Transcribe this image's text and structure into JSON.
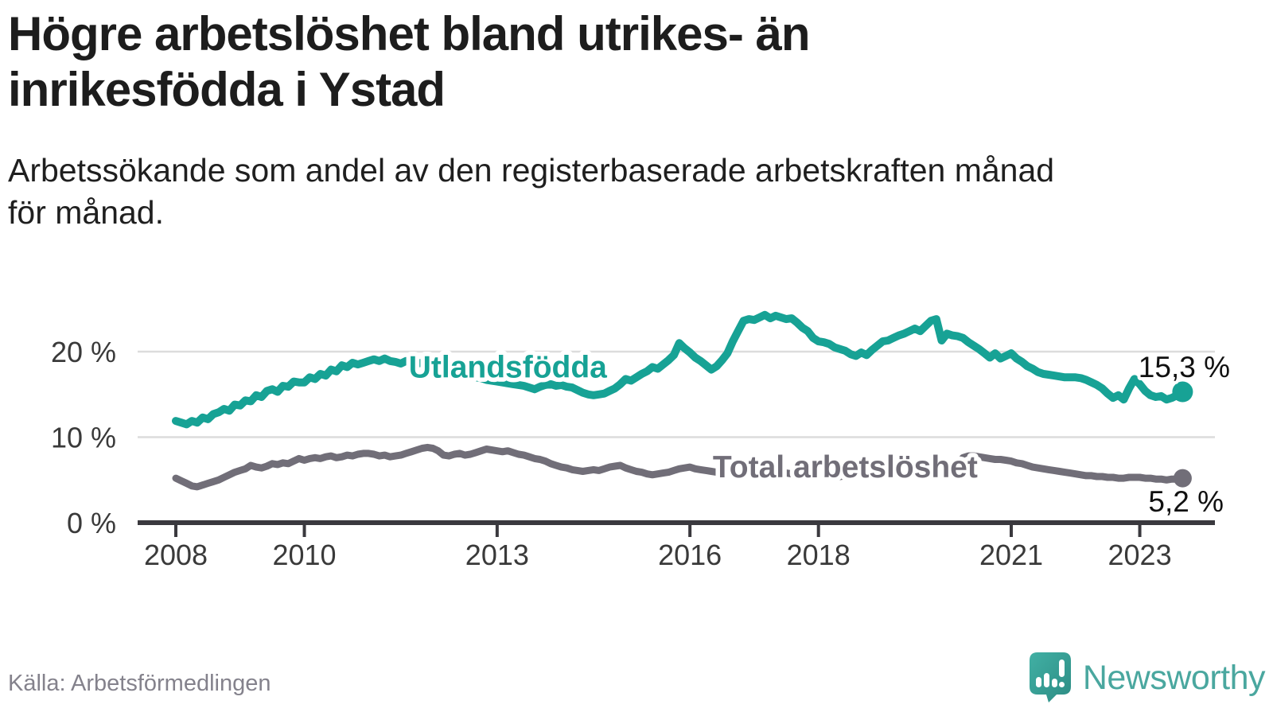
{
  "title_lines": [
    "Högre arbetslöshet bland utrikes- än",
    "inrikesfödda i Ystad"
  ],
  "subtitle_lines": [
    "Arbetssökande som andel av den registerbaserade arbetskraften månad",
    "för månad."
  ],
  "source": "Källa: Arbetsförmedlingen",
  "logo_text": "Newsworthy",
  "colors": {
    "accent_teal": "#17a295",
    "series_gray": "#716e78",
    "grid": "#dcdcdc",
    "axis": "#3a393e",
    "annotation_text": "#111111",
    "tick_text": "#3a3a3a",
    "source_text": "#84828c",
    "logo_teal": "#4aa79f"
  },
  "chart_data": {
    "type": "line",
    "title": "Högre arbetslöshet bland utrikes- än inrikesfödda i Ystad",
    "subtitle": "Arbetssökande som andel av den registerbaserade arbetskraften månad för månad.",
    "unit": "%",
    "grid": true,
    "x_start": "2008-01",
    "x_end": "2023-09",
    "x_interval": "monthly",
    "x_ticks": [
      2008,
      2010,
      2013,
      2016,
      2018,
      2021,
      2023
    ],
    "y_ticks": [
      {
        "v": 0,
        "label": "0 %"
      },
      {
        "v": 10,
        "label": "10 %"
      },
      {
        "v": 20,
        "label": "20 %"
      }
    ],
    "ylim": [
      0,
      26
    ],
    "series": [
      {
        "name": "Utlandsfödda",
        "color": "#17a295",
        "end_label": "15,3 %",
        "end_value": 15.3,
        "label_anchor": {
          "index": 62,
          "value": 18.3
        },
        "values": [
          11.9,
          11.7,
          11.5,
          11.9,
          11.7,
          12.3,
          12.1,
          12.7,
          12.9,
          13.3,
          13.1,
          13.8,
          13.7,
          14.3,
          14.2,
          14.9,
          14.7,
          15.4,
          15.6,
          15.3,
          16.0,
          15.9,
          16.5,
          16.4,
          16.4,
          17.0,
          16.8,
          17.4,
          17.2,
          17.9,
          17.7,
          18.4,
          18.2,
          18.7,
          18.5,
          18.7,
          18.9,
          19.1,
          18.9,
          19.2,
          18.9,
          18.8,
          18.6,
          18.9,
          18.8,
          18.6,
          18.7,
          18.5,
          18.4,
          18.2,
          18.0,
          17.8,
          17.6,
          17.4,
          17.2,
          17.1,
          17.0,
          16.9,
          16.7,
          16.6,
          16.5,
          16.4,
          16.3,
          16.2,
          16.1,
          16.0,
          15.8,
          15.6,
          15.9,
          16.1,
          16.2,
          16.0,
          16.1,
          15.9,
          15.8,
          15.5,
          15.2,
          15.0,
          14.9,
          15.0,
          15.1,
          15.4,
          15.7,
          16.2,
          16.8,
          16.6,
          17.0,
          17.4,
          17.7,
          18.2,
          18.0,
          18.5,
          19.0,
          19.6,
          21.0,
          20.4,
          19.9,
          19.3,
          18.9,
          18.4,
          17.9,
          18.3,
          19.0,
          19.8,
          21.2,
          22.4,
          23.6,
          23.8,
          23.7,
          24.0,
          24.3,
          23.9,
          24.2,
          24.0,
          23.8,
          23.9,
          23.4,
          22.8,
          22.4,
          21.6,
          21.2,
          21.1,
          20.9,
          20.5,
          20.3,
          20.1,
          19.7,
          19.5,
          19.9,
          19.6,
          20.2,
          20.7,
          21.2,
          21.3,
          21.6,
          21.9,
          22.1,
          22.4,
          22.7,
          22.4,
          23.0,
          23.6,
          23.8,
          21.3,
          22.1,
          21.9,
          21.8,
          21.6,
          21.1,
          20.7,
          20.3,
          19.8,
          19.3,
          19.8,
          19.2,
          19.5,
          19.8,
          19.2,
          18.8,
          18.3,
          18.0,
          17.6,
          17.4,
          17.3,
          17.2,
          17.1,
          17.0,
          17.0,
          17.0,
          16.9,
          16.7,
          16.4,
          16.1,
          15.7,
          15.1,
          14.6,
          14.9,
          14.4,
          15.7,
          16.8,
          16.2,
          15.4,
          14.9,
          14.7,
          14.8,
          14.4,
          14.6,
          14.9,
          15.3
        ]
      },
      {
        "name": "Total arbetslöshet",
        "color": "#716e78",
        "end_label": "5,2 %",
        "end_value": 5.2,
        "label_anchor": {
          "index": 125,
          "value": 6.6
        },
        "values": [
          5.2,
          4.9,
          4.6,
          4.3,
          4.2,
          4.4,
          4.6,
          4.8,
          5.0,
          5.3,
          5.6,
          5.9,
          6.1,
          6.3,
          6.7,
          6.5,
          6.4,
          6.6,
          6.9,
          6.8,
          7.0,
          6.9,
          7.2,
          7.5,
          7.3,
          7.5,
          7.6,
          7.5,
          7.7,
          7.8,
          7.6,
          7.7,
          7.9,
          7.8,
          8.0,
          8.1,
          8.1,
          8.0,
          7.8,
          7.9,
          7.7,
          7.8,
          7.9,
          8.1,
          8.3,
          8.5,
          8.7,
          8.8,
          8.7,
          8.4,
          7.9,
          7.8,
          8.0,
          8.1,
          7.9,
          8.0,
          8.2,
          8.4,
          8.6,
          8.5,
          8.4,
          8.3,
          8.4,
          8.2,
          8.0,
          7.9,
          7.7,
          7.5,
          7.4,
          7.2,
          6.9,
          6.7,
          6.5,
          6.4,
          6.2,
          6.1,
          6.0,
          6.1,
          6.2,
          6.1,
          6.3,
          6.5,
          6.6,
          6.7,
          6.4,
          6.2,
          6.0,
          5.9,
          5.7,
          5.6,
          5.7,
          5.8,
          5.9,
          6.1,
          6.3,
          6.4,
          6.5,
          6.3,
          6.2,
          6.1,
          6.0,
          5.9,
          5.8,
          5.9,
          6.0,
          5.9,
          5.8,
          5.9,
          5.8,
          5.7,
          5.8,
          5.7,
          5.6,
          5.7,
          5.8,
          5.7,
          5.6,
          5.5,
          5.6,
          5.7,
          5.6,
          5.5,
          5.6,
          5.5,
          5.4,
          5.5,
          5.6,
          5.5,
          5.6,
          5.5,
          5.6,
          5.7,
          5.6,
          5.7,
          5.8,
          5.7,
          5.8,
          5.9,
          6.0,
          5.9,
          6.0,
          5.9,
          5.8,
          5.9,
          6.1,
          6.3,
          6.9,
          7.6,
          7.8,
          7.8,
          7.7,
          7.6,
          7.5,
          7.4,
          7.4,
          7.3,
          7.2,
          7.0,
          6.9,
          6.7,
          6.5,
          6.4,
          6.3,
          6.2,
          6.1,
          6.0,
          5.9,
          5.8,
          5.7,
          5.6,
          5.5,
          5.5,
          5.4,
          5.4,
          5.3,
          5.3,
          5.2,
          5.2,
          5.3,
          5.3,
          5.3,
          5.2,
          5.2,
          5.1,
          5.1,
          5.0,
          5.1,
          5.1,
          5.2
        ]
      }
    ]
  }
}
